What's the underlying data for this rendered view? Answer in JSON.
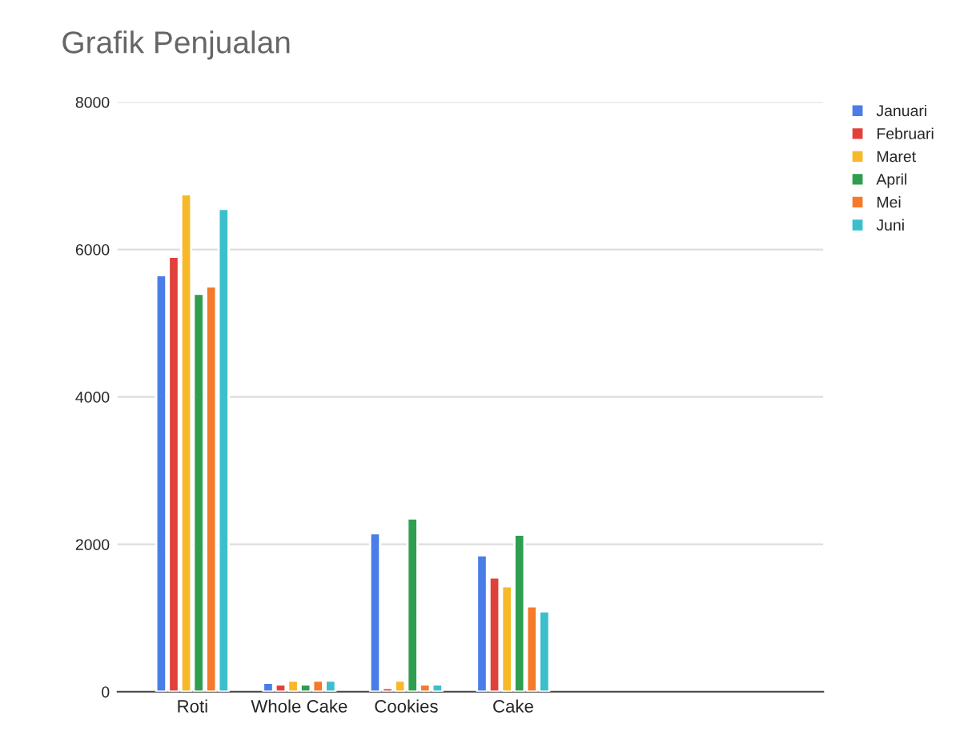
{
  "chart_data": {
    "type": "bar",
    "title": "Grafik Penjualan",
    "categories": [
      "Roti",
      "Whole Cake",
      "Cookies",
      "Cake"
    ],
    "series": [
      {
        "name": "Januari",
        "color": "#4a7de8",
        "values": [
          5650,
          120,
          2150,
          1850
        ]
      },
      {
        "name": "Februari",
        "color": "#e2403a",
        "values": [
          5900,
          100,
          50,
          1550
        ]
      },
      {
        "name": "Maret",
        "color": "#f7b928",
        "values": [
          6750,
          150,
          150,
          1430
        ]
      },
      {
        "name": "April",
        "color": "#2f9e4f",
        "values": [
          5400,
          100,
          2350,
          2130
        ]
      },
      {
        "name": "Mei",
        "color": "#f57a2a",
        "values": [
          5500,
          150,
          100,
          1160
        ]
      },
      {
        "name": "Juni",
        "color": "#3bbfcc",
        "values": [
          6550,
          150,
          100,
          1090
        ]
      }
    ],
    "ylim": [
      0,
      8000
    ],
    "yticks": [
      0,
      2000,
      4000,
      6000,
      8000
    ],
    "grid": "y",
    "legend": "top right"
  }
}
